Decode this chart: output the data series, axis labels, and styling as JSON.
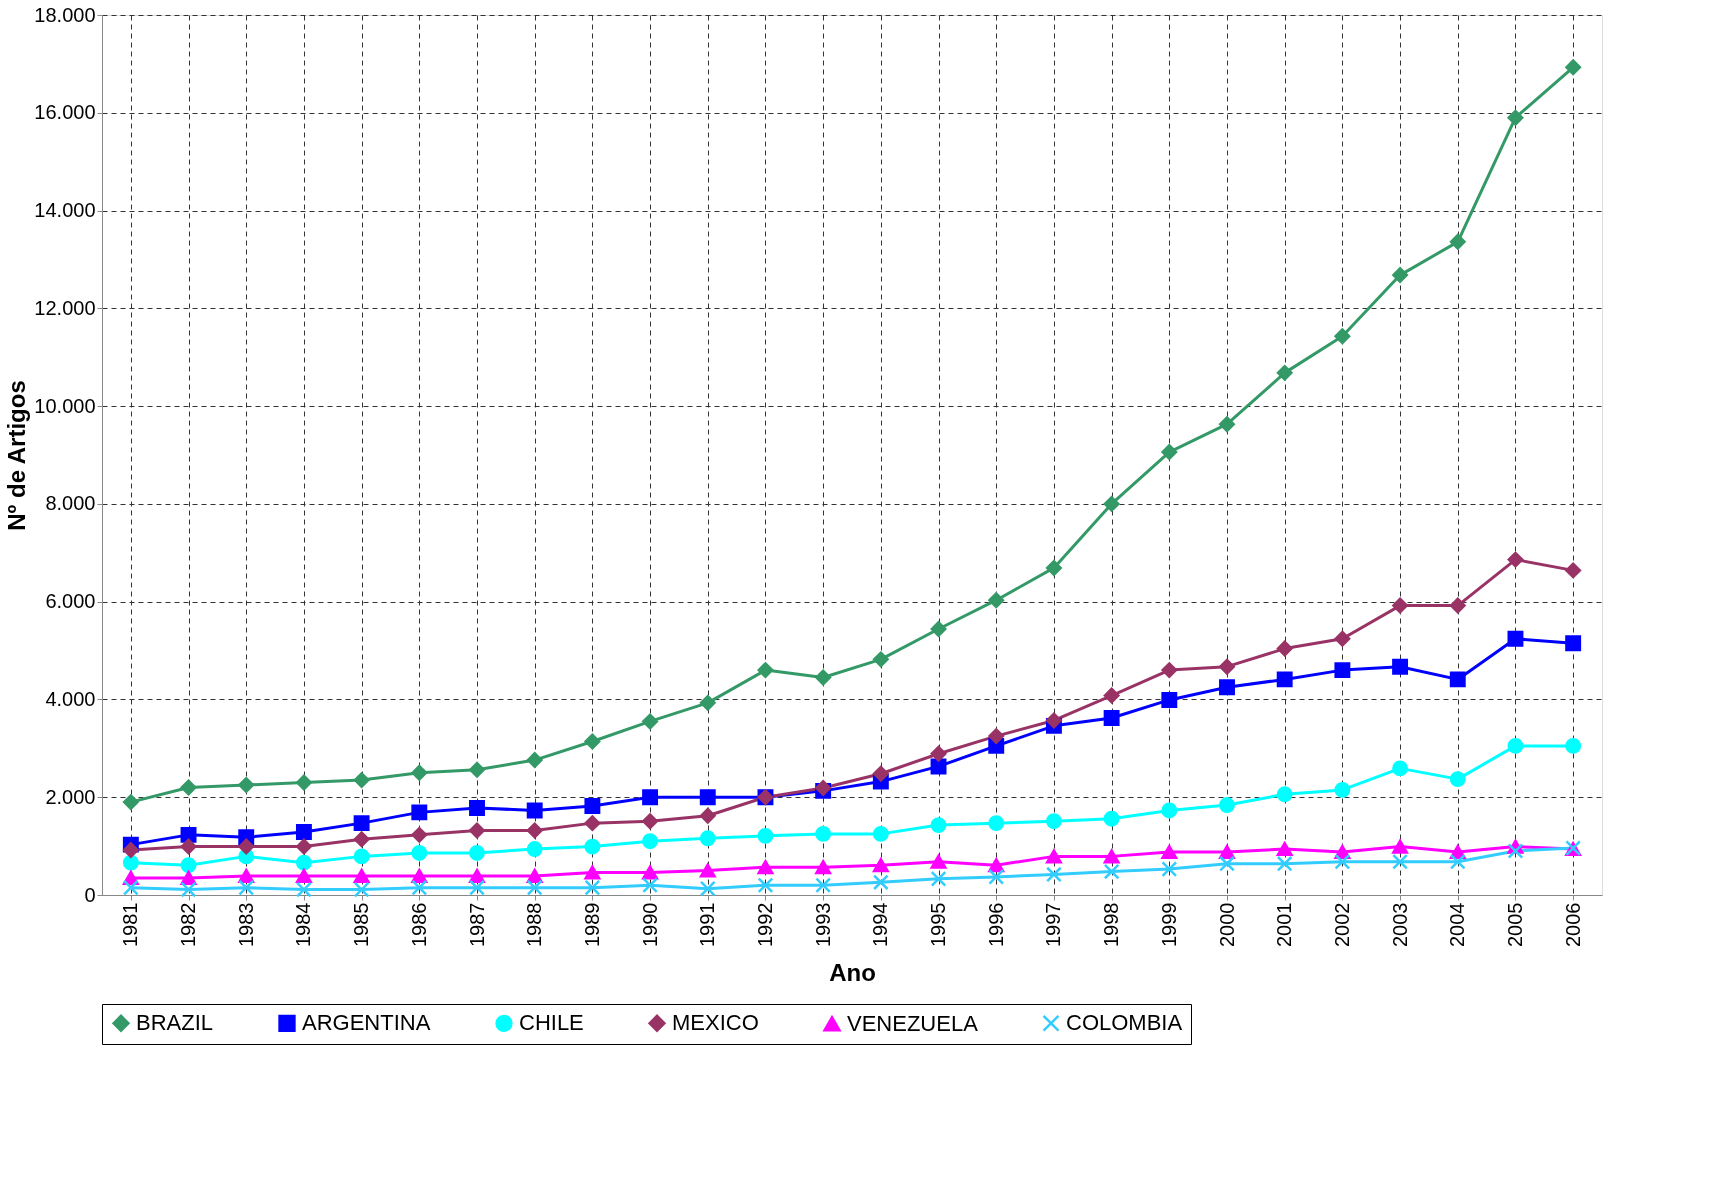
{
  "chart_data": {
    "type": "line",
    "xlabel": "Ano",
    "ylabel": "Nº de Artigos",
    "categories": [
      "1981",
      "1982",
      "1983",
      "1984",
      "1985",
      "1986",
      "1987",
      "1988",
      "1989",
      "1990",
      "1991",
      "1992",
      "1993",
      "1994",
      "1995",
      "1996",
      "1997",
      "1998",
      "1999",
      "2000",
      "2001",
      "2002",
      "2003",
      "2004",
      "2005",
      "2006"
    ],
    "series": [
      {
        "name": "BRAZIL",
        "color": "#339966",
        "marker": "diamond",
        "values": [
          1900,
          2200,
          2250,
          2300,
          2350,
          2500,
          2560,
          2760,
          3140,
          3550,
          3930,
          4600,
          4450,
          4820,
          5440,
          6030,
          6690,
          8000,
          9060,
          9630,
          10680,
          11430,
          12680,
          13360,
          15900,
          16930
        ]
      },
      {
        "name": "ARGENTINA",
        "color": "#0000ff",
        "marker": "square",
        "values": [
          1030,
          1230,
          1180,
          1290,
          1470,
          1690,
          1780,
          1730,
          1820,
          2000,
          2000,
          2000,
          2130,
          2320,
          2630,
          3050,
          3460,
          3620,
          3990,
          4250,
          4410,
          4600,
          4670,
          4410,
          5240,
          5150
        ]
      },
      {
        "name": "CHILE",
        "color": "#00ffff",
        "marker": "circle",
        "values": [
          660,
          610,
          790,
          660,
          790,
          860,
          860,
          940,
          990,
          1100,
          1160,
          1210,
          1250,
          1250,
          1430,
          1470,
          1510,
          1560,
          1730,
          1840,
          2060,
          2150,
          2590,
          2370,
          3050,
          3050
        ]
      },
      {
        "name": "MEXICO",
        "color": "#993366",
        "marker": "diamond",
        "values": [
          920,
          990,
          990,
          990,
          1140,
          1230,
          1320,
          1320,
          1470,
          1510,
          1620,
          2000,
          2190,
          2480,
          2890,
          3250,
          3570,
          4080,
          4600,
          4670,
          5040,
          5240,
          5920,
          5920,
          6860,
          6640
        ]
      },
      {
        "name": "VENEZUELA",
        "color": "#ff00ff",
        "marker": "triangle",
        "values": [
          350,
          350,
          390,
          390,
          390,
          390,
          390,
          390,
          460,
          460,
          500,
          570,
          570,
          610,
          680,
          610,
          790,
          790,
          880,
          880,
          940,
          880,
          990,
          880,
          990,
          940
        ]
      },
      {
        "name": "COLOMBIA",
        "color": "#33ccff",
        "marker": "cross",
        "values": [
          150,
          110,
          150,
          110,
          110,
          150,
          150,
          150,
          150,
          200,
          130,
          200,
          200,
          260,
          330,
          370,
          420,
          480,
          530,
          640,
          640,
          680,
          680,
          680,
          900,
          960
        ]
      }
    ],
    "ylim": [
      0,
      18000
    ],
    "yticks": [
      0,
      {
        "value": 2000,
        "label": "2.000"
      },
      {
        "value": 4000,
        "label": "4.000"
      },
      {
        "value": 6000,
        "label": "6.000"
      },
      {
        "value": 8000,
        "label": "8.000"
      },
      {
        "value": 10000,
        "label": "10.000"
      },
      {
        "value": 12000,
        "label": "12.000"
      },
      {
        "value": 14000,
        "label": "14.000"
      },
      {
        "value": 16000,
        "label": "16.000"
      },
      {
        "value": 18000,
        "label": "18.000"
      }
    ],
    "grid": true,
    "legend": "bottom",
    "line_style": "solid"
  }
}
